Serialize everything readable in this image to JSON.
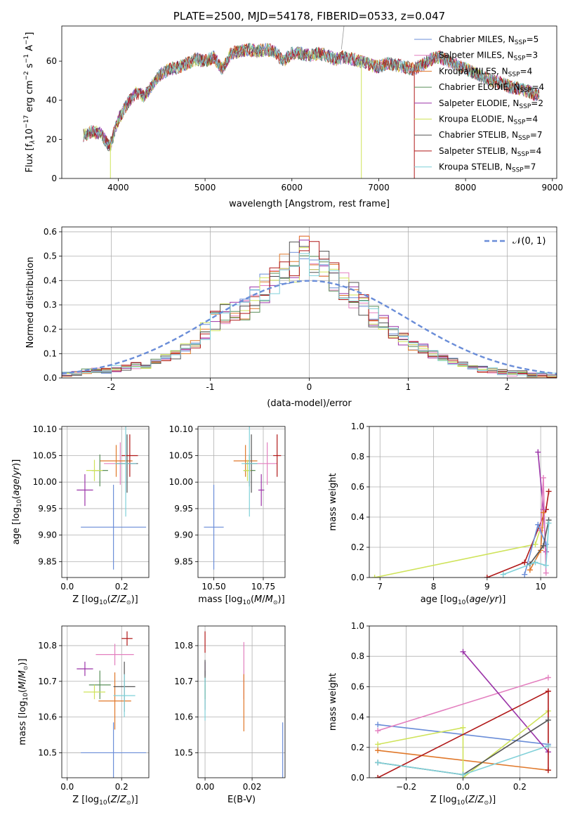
{
  "colors": {
    "chabrier_miles": "#6a8dd8",
    "salpeter_miles": "#e37fbf",
    "kroupa_miles": "#e0782a",
    "chabrier_elodie": "#5a8f5a",
    "salpeter_elodie": "#9b34a8",
    "kroupa_elodie": "#cfe35a",
    "chabrier_stelib": "#555555",
    "salpeter_stelib": "#b01818",
    "kroupa_stelib": "#7fd0d8",
    "gaussian": "#6a8dd8"
  },
  "chart_data": [
    {
      "id": "spectrum",
      "type": "line",
      "title": "PLATE=2500, MJD=54178, FIBERID=0533, z=0.047",
      "xlabel": "wavelength [Angstrom, rest frame]",
      "ylabel_html": "Flux [f<tspan font-style='italic' font-size='9' dy='3'>λ</tspan><tspan dy='-3'>10</tspan><tspan font-size='9' dy='-6'>−17</tspan><tspan dy='6'> erg cm</tspan><tspan font-size='9' dy='-6'>−2</tspan><tspan dy='6'> s</tspan><tspan font-size='9' dy='-6'>−1</tspan><tspan dy='6'> A</tspan><tspan font-size='9' dy='-6'>−1</tspan><tspan dy='6'>]</tspan>",
      "xlim": [
        3350,
        9050
      ],
      "ylim": [
        0,
        78
      ],
      "xticks": [
        4000,
        5000,
        6000,
        7000,
        8000,
        9000
      ],
      "yticks": [
        0,
        20,
        40,
        60
      ],
      "x": [
        3600,
        3700,
        3800,
        3900,
        4000,
        4100,
        4200,
        4300,
        4400,
        4500,
        4600,
        4700,
        4800,
        4900,
        5000,
        5100,
        5200,
        5300,
        5400,
        5500,
        5600,
        5700,
        5800,
        5900,
        6000,
        6100,
        6200,
        6300,
        6400,
        6500,
        6600,
        6700,
        6800,
        6900,
        7000,
        7100,
        7200,
        7300,
        7400,
        7500,
        7600,
        7700,
        7800,
        7900,
        8000,
        8100,
        8200,
        8300,
        8400,
        8500,
        8600,
        8700,
        8800
      ],
      "flux": [
        22,
        24,
        23,
        16,
        30,
        38,
        44,
        42,
        48,
        54,
        56,
        57,
        59,
        61,
        60,
        62,
        56,
        64,
        65,
        66,
        65,
        66,
        65,
        60,
        64,
        64,
        63,
        64,
        63,
        61,
        62,
        61,
        60,
        58,
        57,
        59,
        58,
        57,
        56,
        58,
        61,
        62,
        60,
        58,
        56,
        54,
        52,
        50,
        49,
        47,
        46,
        45,
        43
      ],
      "series": [
        {
          "name": "Chabrier MILES, N",
          "sub": "SSP",
          "suffix": "=5",
          "color": "#6a8dd8"
        },
        {
          "name": "Salpeter MILES, N",
          "sub": "SSP",
          "suffix": "=3",
          "color": "#e37fbf"
        },
        {
          "name": "Kroupa MILES, N",
          "sub": "SSP",
          "suffix": "=4",
          "color": "#e0782a"
        },
        {
          "name": "Chabrier ELODIE, N",
          "sub": "SSP",
          "suffix": "=4",
          "color": "#5a8f5a"
        },
        {
          "name": "Salpeter ELODIE, N",
          "sub": "SSP",
          "suffix": "=2",
          "color": "#9b34a8"
        },
        {
          "name": "Kroupa ELODIE, N",
          "sub": "SSP",
          "suffix": "=4",
          "color": "#cfe35a"
        },
        {
          "name": "Chabrier STELIB, N",
          "sub": "SSP",
          "suffix": "=7",
          "color": "#555555"
        },
        {
          "name": "Salpeter STELIB, N",
          "sub": "SSP",
          "suffix": "=4",
          "color": "#b01818"
        },
        {
          "name": "Kroupa STELIB, N",
          "sub": "SSP",
          "suffix": "=7",
          "color": "#7fd0d8"
        }
      ],
      "legend_position": "top-right"
    },
    {
      "id": "residuals",
      "type": "bar",
      "xlabel": "(data-model)/error",
      "ylabel": "Normed distribution",
      "xlim": [
        -2.5,
        2.5
      ],
      "ylim": [
        0,
        0.62
      ],
      "xticks": [
        -2,
        -1,
        0,
        1,
        2
      ],
      "yticks": [
        0.0,
        0.1,
        0.2,
        0.3,
        0.4,
        0.5,
        0.6
      ],
      "bin_width": 0.1,
      "bin_start": -2.5,
      "histogram": [
        0.015,
        0.02,
        0.025,
        0.03,
        0.03,
        0.04,
        0.045,
        0.05,
        0.05,
        0.07,
        0.08,
        0.1,
        0.12,
        0.15,
        0.19,
        0.23,
        0.26,
        0.28,
        0.29,
        0.33,
        0.37,
        0.41,
        0.44,
        0.48,
        0.52,
        0.5,
        0.46,
        0.42,
        0.37,
        0.33,
        0.29,
        0.25,
        0.22,
        0.19,
        0.16,
        0.14,
        0.12,
        0.1,
        0.08,
        0.065,
        0.055,
        0.045,
        0.035,
        0.03,
        0.025,
        0.02,
        0.02,
        0.015,
        0.015,
        0.01
      ],
      "grid": true,
      "legend": {
        "label": "𝒩(0, 1)",
        "position": "top-right"
      }
    },
    {
      "id": "age_vs_z",
      "type": "scatter",
      "xlabel": "Z [log",
      "ylabel": "age  [log",
      "xlim": [
        -0.02,
        0.3
      ],
      "ylim": [
        9.82,
        10.105
      ],
      "xticks": [
        0.0,
        0.2
      ],
      "xtick_labels": [
        "0.0",
        "0.2"
      ],
      "yticks": [
        9.85,
        9.9,
        9.95,
        10.0,
        10.05,
        10.1
      ],
      "ytick_labels": [
        "9.85",
        "9.90",
        "9.95",
        "10.00",
        "10.05",
        "10.10"
      ],
      "points": [
        {
          "x": 0.17,
          "y": 9.915,
          "xerr": 0.12,
          "yerr": 0.08,
          "color": "#6a8dd8"
        },
        {
          "x": 0.195,
          "y": 10.035,
          "xerr": 0.06,
          "yerr": 0.04,
          "color": "#e37fbf"
        },
        {
          "x": 0.18,
          "y": 10.04,
          "xerr": 0.06,
          "yerr": 0.03,
          "color": "#e0782a"
        },
        {
          "x": 0.12,
          "y": 10.022,
          "xerr": 0.03,
          "yerr": 0.03,
          "color": "#5a8f5a"
        },
        {
          "x": 0.065,
          "y": 9.985,
          "xerr": 0.03,
          "yerr": 0.03,
          "color": "#9b34a8"
        },
        {
          "x": 0.1,
          "y": 10.022,
          "xerr": 0.03,
          "yerr": 0.02,
          "color": "#cfe35a"
        },
        {
          "x": 0.22,
          "y": 10.035,
          "xerr": 0.04,
          "yerr": 0.055,
          "color": "#555555"
        },
        {
          "x": 0.23,
          "y": 10.05,
          "xerr": 0.03,
          "yerr": 0.04,
          "color": "#b01818"
        },
        {
          "x": 0.215,
          "y": 10.035,
          "xerr": 0.04,
          "yerr": 0.1,
          "color": "#7fd0d8"
        }
      ]
    },
    {
      "id": "age_vs_mass",
      "type": "scatter",
      "xlabel": "mass [log",
      "xlim": [
        10.42,
        10.86
      ],
      "ylim": [
        9.82,
        10.105
      ],
      "xticks": [
        10.5,
        10.75
      ],
      "xtick_labels": [
        "10.50",
        "10.75"
      ],
      "yticks": [
        9.85,
        9.9,
        9.95,
        10.0,
        10.05,
        10.1
      ],
      "ytick_labels": [
        "9.85",
        "9.90",
        "9.95",
        "10.00",
        "10.05",
        "10.10"
      ],
      "points": [
        {
          "x": 10.5,
          "y": 9.915,
          "xerr": 0.05,
          "yerr": 0.08,
          "color": "#6a8dd8"
        },
        {
          "x": 10.77,
          "y": 10.035,
          "xerr": 0.05,
          "yerr": 0.04,
          "color": "#e37fbf"
        },
        {
          "x": 10.66,
          "y": 10.04,
          "xerr": 0.06,
          "yerr": 0.03,
          "color": "#e0782a"
        },
        {
          "x": 10.68,
          "y": 10.022,
          "xerr": 0.03,
          "yerr": 0.03,
          "color": "#5a8f5a"
        },
        {
          "x": 10.74,
          "y": 9.985,
          "xerr": 0.015,
          "yerr": 0.03,
          "color": "#9b34a8"
        },
        {
          "x": 10.67,
          "y": 10.022,
          "xerr": 0.02,
          "yerr": 0.02,
          "color": "#cfe35a"
        },
        {
          "x": 10.69,
          "y": 10.035,
          "xerr": 0.03,
          "yerr": 0.055,
          "color": "#555555"
        },
        {
          "x": 10.82,
          "y": 10.05,
          "xerr": 0.02,
          "yerr": 0.04,
          "color": "#b01818"
        },
        {
          "x": 10.68,
          "y": 10.035,
          "xerr": 0.04,
          "yerr": 0.1,
          "color": "#7fd0d8"
        }
      ]
    },
    {
      "id": "weight_vs_age",
      "type": "line",
      "xlabel": "age  [log",
      "ylabel": "mass weight",
      "xlim": [
        6.8,
        10.3
      ],
      "ylim": [
        0,
        1.0
      ],
      "xticks": [
        7,
        8,
        9,
        10
      ],
      "yticks": [
        0.0,
        0.2,
        0.4,
        0.6,
        0.8,
        1.0
      ],
      "ytick_labels": [
        "0.0",
        "0.2",
        "0.4",
        "0.6",
        "0.8",
        "1.0"
      ],
      "series": [
        {
          "color": "#cfe35a",
          "x": [
            6.9,
            9.9,
            10.0
          ],
          "y": [
            0.0,
            0.22,
            0.33
          ]
        },
        {
          "color": "#b01818",
          "x": [
            9.0,
            9.7,
            10.1,
            10.15
          ],
          "y": [
            0.0,
            0.1,
            0.45,
            0.57
          ]
        },
        {
          "color": "#9b34a8",
          "x": [
            9.95,
            10.05,
            10.1
          ],
          "y": [
            0.83,
            0.45,
            0.17
          ]
        },
        {
          "color": "#e37fbf",
          "x": [
            10.0,
            10.05,
            10.1
          ],
          "y": [
            0.31,
            0.66,
            0.03
          ]
        },
        {
          "color": "#e0782a",
          "x": [
            9.8,
            10.0,
            10.05
          ],
          "y": [
            0.05,
            0.18,
            0.43
          ]
        },
        {
          "color": "#6a8dd8",
          "x": [
            9.7,
            9.95,
            10.1
          ],
          "y": [
            0.02,
            0.35,
            0.22
          ]
        },
        {
          "color": "#555555",
          "x": [
            9.8,
            10.05,
            10.15
          ],
          "y": [
            0.09,
            0.21,
            0.38
          ]
        },
        {
          "color": "#7fd0d8",
          "x": [
            9.3,
            9.9,
            10.1,
            10.15
          ],
          "y": [
            0.02,
            0.1,
            0.08,
            0.36
          ]
        }
      ]
    },
    {
      "id": "mass_vs_z",
      "type": "scatter",
      "xlabel": "Z [log",
      "ylabel": "mass [log",
      "xlim": [
        -0.02,
        0.3
      ],
      "ylim": [
        10.43,
        10.855
      ],
      "xticks": [
        0.0,
        0.2
      ],
      "xtick_labels": [
        "0.0",
        "0.2"
      ],
      "yticks": [
        10.5,
        10.6,
        10.7,
        10.8
      ],
      "ytick_labels": [
        "10.5",
        "10.6",
        "10.7",
        "10.8"
      ],
      "points": [
        {
          "x": 0.17,
          "y": 10.5,
          "xerr": 0.12,
          "yerr": 0.085,
          "color": "#6a8dd8"
        },
        {
          "x": 0.175,
          "y": 10.775,
          "xerr": 0.07,
          "yerr": 0.03,
          "color": "#e37fbf"
        },
        {
          "x": 0.175,
          "y": 10.645,
          "xerr": 0.06,
          "yerr": 0.08,
          "color": "#e0782a"
        },
        {
          "x": 0.12,
          "y": 10.69,
          "xerr": 0.04,
          "yerr": 0.04,
          "color": "#5a8f5a"
        },
        {
          "x": 0.065,
          "y": 10.735,
          "xerr": 0.03,
          "yerr": 0.02,
          "color": "#9b34a8"
        },
        {
          "x": 0.1,
          "y": 10.67,
          "xerr": 0.04,
          "yerr": 0.02,
          "color": "#cfe35a"
        },
        {
          "x": 0.21,
          "y": 10.685,
          "xerr": 0.04,
          "yerr": 0.07,
          "color": "#555555"
        },
        {
          "x": 0.22,
          "y": 10.82,
          "xerr": 0.02,
          "yerr": 0.02,
          "color": "#b01818"
        },
        {
          "x": 0.21,
          "y": 10.66,
          "xerr": 0.04,
          "yerr": 0.06,
          "color": "#7fd0d8"
        }
      ]
    },
    {
      "id": "mass_vs_ebv",
      "type": "scatter",
      "xlabel": "E(B-V)",
      "xlim": [
        -0.003,
        0.034
      ],
      "ylim": [
        10.43,
        10.855
      ],
      "xticks": [
        0.0,
        0.02
      ],
      "xtick_labels": [
        "0.00",
        "0.02"
      ],
      "yticks": [
        10.5,
        10.6,
        10.7,
        10.8
      ],
      "ytick_labels": [
        "10.5",
        "10.6",
        "10.7",
        "10.8"
      ],
      "points": [
        {
          "x": 0.033,
          "y": 10.5,
          "xerr": 0.0,
          "yerr": 0.085,
          "color": "#6a8dd8"
        },
        {
          "x": 0.0165,
          "y": 10.73,
          "xerr": 0.0,
          "yerr": 0.08,
          "color": "#e37fbf"
        },
        {
          "x": 0.0165,
          "y": 10.64,
          "xerr": 0.0,
          "yerr": 0.08,
          "color": "#e0782a"
        },
        {
          "x": 0.0,
          "y": 10.69,
          "xerr": 0.0,
          "yerr": 0.04,
          "color": "#5a8f5a"
        },
        {
          "x": 0.0,
          "y": 10.735,
          "xerr": 0.0,
          "yerr": 0.02,
          "color": "#9b34a8"
        },
        {
          "x": 0.0,
          "y": 10.67,
          "xerr": 0.0,
          "yerr": 0.02,
          "color": "#cfe35a"
        },
        {
          "x": 0.0,
          "y": 10.69,
          "xerr": 0.0,
          "yerr": 0.07,
          "color": "#555555"
        },
        {
          "x": 0.0,
          "y": 10.81,
          "xerr": 0.0,
          "yerr": 0.03,
          "color": "#b01818"
        },
        {
          "x": 0.0,
          "y": 10.65,
          "xerr": 0.0,
          "yerr": 0.06,
          "color": "#7fd0d8"
        }
      ]
    },
    {
      "id": "weight_vs_z",
      "type": "line",
      "xlabel": "Z [log",
      "ylabel": "mass weight",
      "xlim": [
        -0.33,
        0.33
      ],
      "ylim": [
        0,
        1.0
      ],
      "xticks": [
        -0.2,
        0.0,
        0.2
      ],
      "xtick_labels": [
        "−0.2",
        "0.0",
        "0.2"
      ],
      "yticks": [
        0.0,
        0.2,
        0.4,
        0.6,
        0.8,
        1.0
      ],
      "ytick_labels": [
        "0.0",
        "0.2",
        "0.4",
        "0.6",
        "0.8",
        "1.0"
      ],
      "series": [
        {
          "color": "#6a8dd8",
          "x": [
            -0.3,
            0.3
          ],
          "y": [
            0.35,
            0.22
          ]
        },
        {
          "color": "#e37fbf",
          "x": [
            -0.3,
            0.3
          ],
          "y": [
            0.31,
            0.66
          ]
        },
        {
          "color": "#e0782a",
          "x": [
            -0.3,
            0.3
          ],
          "y": [
            0.18,
            0.05
          ]
        },
        {
          "color": "#9b34a8",
          "x": [
            0.0,
            0.3
          ],
          "y": [
            0.83,
            0.17
          ]
        },
        {
          "color": "#cfe35a",
          "x": [
            -0.3,
            0.0,
            0.0,
            0.3
          ],
          "y": [
            0.22,
            0.33,
            0.0,
            0.44
          ]
        },
        {
          "color": "#b01818",
          "x": [
            -0.3,
            0.3,
            0.3
          ],
          "y": [
            0.0,
            0.57,
            0.05
          ]
        },
        {
          "color": "#555555",
          "x": [
            -0.3,
            0.0,
            0.3
          ],
          "y": [
            0.1,
            0.02,
            0.38
          ]
        },
        {
          "color": "#7fd0d8",
          "x": [
            -0.3,
            0.0,
            0.3
          ],
          "y": [
            0.1,
            0.02,
            0.21
          ]
        }
      ]
    }
  ]
}
